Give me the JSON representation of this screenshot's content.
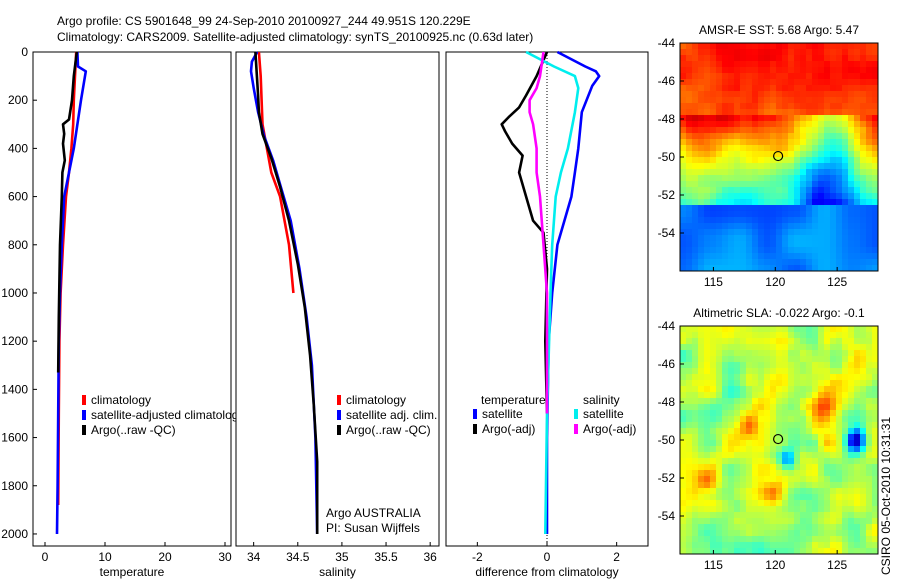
{
  "header": {
    "line1": "Argo profile: CS 5901648_99 24-Sep-2010 20100927_244 49.951S 120.229E",
    "line2": "Climatology: CARS2009. Satellite-adjusted climatology: synTS_20100925.nc (0.63d later)"
  },
  "credit": "CSIRO 05-Oct-2010 10:31:31",
  "colors": {
    "climatology": "#ff0000",
    "satellite": "#0000ff",
    "argo": "#000000",
    "sal_satellite": "#00eeee",
    "sal_argo": "#ff00ff"
  },
  "depth_ticks": [
    "0",
    "200",
    "400",
    "600",
    "800",
    "1000",
    "1200",
    "1400",
    "1600",
    "1800",
    "2000"
  ],
  "chart_data": [
    {
      "type": "line",
      "panel": "temperature",
      "xlabel": "temperature",
      "xlim": [
        -2,
        31
      ],
      "ylim": [
        0,
        2050
      ],
      "y_reversed": true,
      "xticks": [
        "0",
        "10",
        "20",
        "30"
      ],
      "legend": [
        "climatology",
        "satellite-adjusted climatolog",
        "Argo(..raw -QC)"
      ],
      "series": [
        {
          "name": "climatology",
          "color": "#ff0000",
          "x": [
            5.2,
            5.0,
            4.8,
            4.7,
            4.4,
            4.0,
            3.5,
            3.0,
            2.6,
            2.4,
            2.3,
            2.2
          ],
          "y": [
            0,
            100,
            200,
            300,
            400,
            500,
            600,
            800,
            1000,
            1200,
            1500,
            1880
          ]
        },
        {
          "name": "satellite-adjusted climatolog",
          "color": "#0000ff",
          "x": [
            5.4,
            5.5,
            6.8,
            6.0,
            4.8,
            4.0,
            3.2,
            2.8,
            2.5,
            2.3,
            2.2,
            2.1,
            2.0
          ],
          "y": [
            0,
            60,
            80,
            200,
            400,
            500,
            600,
            800,
            1000,
            1200,
            1500,
            1800,
            2000
          ]
        },
        {
          "name": "Argo(..raw -QC)",
          "color": "#000000",
          "x": [
            5.3,
            4.8,
            4.5,
            4.0,
            3.0,
            3.2,
            3.0,
            3.3,
            2.9,
            2.8,
            2.5,
            2.3,
            2.2
          ],
          "y": [
            0,
            100,
            200,
            280,
            300,
            340,
            380,
            450,
            500,
            600,
            800,
            1100,
            1330
          ]
        }
      ]
    },
    {
      "type": "line",
      "panel": "salinity",
      "xlabel": "salinity",
      "xlim": [
        33.8,
        36.1
      ],
      "ylim": [
        0,
        2050
      ],
      "y_reversed": true,
      "xticks": [
        "34",
        "34.5",
        "35",
        "35.5",
        "36"
      ],
      "legend": [
        "climatology",
        "satellite adj. clim.",
        "Argo(..raw -QC)"
      ],
      "annotations": [
        "Argo AUSTRALIA",
        "PI: Susan Wijffels"
      ],
      "series": [
        {
          "name": "climatology",
          "color": "#ff0000",
          "x": [
            34.06,
            34.08,
            34.09,
            34.1,
            34.15,
            34.2,
            34.3,
            34.4,
            34.45
          ],
          "y": [
            0,
            100,
            200,
            300,
            400,
            500,
            600,
            800,
            1000
          ]
        },
        {
          "name": "satellite adj. clim.",
          "color": "#0000ff",
          "x": [
            34.04,
            33.98,
            33.97,
            34.0,
            34.05,
            34.12,
            34.22,
            34.3,
            34.42,
            34.52,
            34.6,
            34.66,
            34.7,
            34.72
          ],
          "y": [
            0,
            40,
            80,
            150,
            250,
            350,
            450,
            550,
            700,
            900,
            1100,
            1300,
            1600,
            2000
          ]
        },
        {
          "name": "Argo(..raw -QC)",
          "color": "#000000",
          "x": [
            34.02,
            34.03,
            34.04,
            34.05,
            34.06,
            34.1,
            34.2,
            34.3,
            34.4,
            34.5,
            34.58,
            34.64,
            34.68,
            34.72,
            34.72
          ],
          "y": [
            0,
            60,
            120,
            180,
            250,
            340,
            440,
            560,
            700,
            880,
            1060,
            1260,
            1460,
            1700,
            2000
          ]
        }
      ]
    },
    {
      "type": "line",
      "panel": "difference",
      "xlabel": "difference from climatology",
      "xlim": [
        -2.9,
        2.9
      ],
      "ylim": [
        0,
        2050
      ],
      "y_reversed": true,
      "xticks": [
        "-2",
        "0",
        "2"
      ],
      "legend_titles": [
        "temperature",
        "salinity"
      ],
      "legend": [
        "satellite",
        "Argo(-adj)",
        "satellite",
        "Argo(-adj)"
      ],
      "series": [
        {
          "name": "satellite",
          "group": "temperature",
          "color": "#0000ff",
          "x": [
            0.3,
            1.1,
            1.4,
            1.5,
            1.3,
            1.0,
            0.9,
            0.8,
            0.7,
            0.5,
            0.3,
            0.15,
            0.05,
            0.0,
            0.0
          ],
          "y": [
            0,
            60,
            80,
            100,
            140,
            250,
            400,
            500,
            600,
            700,
            800,
            1000,
            1200,
            1600,
            2000
          ]
        },
        {
          "name": "Argo(-adj)",
          "group": "temperature",
          "color": "#000000",
          "x": [
            0.0,
            -0.3,
            -0.6,
            -0.8,
            -1.1,
            -1.3,
            -1.2,
            -1.0,
            -0.7,
            -0.8,
            -0.6,
            -0.4,
            -0.1,
            0.0,
            -0.05,
            0.0
          ],
          "y": [
            0,
            100,
            180,
            230,
            270,
            300,
            330,
            380,
            430,
            500,
            600,
            700,
            750,
            900,
            1200,
            1500
          ]
        },
        {
          "name": "satellite",
          "group": "salinity",
          "color": "#00eeee",
          "x": [
            -0.6,
            0.2,
            0.8,
            0.9,
            0.8,
            0.6,
            0.4,
            0.25,
            0.15,
            0.1,
            0.0,
            -0.05
          ],
          "y": [
            0,
            60,
            100,
            150,
            250,
            400,
            500,
            600,
            800,
            1000,
            1500,
            2000
          ]
        },
        {
          "name": "Argo(-adj)",
          "group": "salinity",
          "color": "#ff00ff",
          "x": [
            -0.1,
            -0.2,
            -0.3,
            -0.5,
            -0.5,
            -0.4,
            -0.3,
            -0.3,
            -0.2,
            -0.1,
            0.0,
            0.0
          ],
          "y": [
            0,
            100,
            150,
            200,
            250,
            300,
            400,
            500,
            600,
            800,
            1000,
            1500
          ]
        }
      ]
    },
    {
      "type": "heatmap",
      "panel": "sst_map",
      "title": "AMSR-E SST: 5.68 Argo: 5.47",
      "xlim": [
        112.3,
        128.3
      ],
      "ylim": [
        -56,
        -44
      ],
      "xticks": [
        "115",
        "120",
        "125"
      ],
      "yticks": [
        "-44",
        "-46",
        "-48",
        "-50",
        "-52",
        "-54"
      ],
      "marker": {
        "lon": 120.229,
        "lat": -49.951
      }
    },
    {
      "type": "heatmap",
      "panel": "sla_map",
      "title": "Altimetric SLA: -0.022 Argo: -0.1",
      "xlim": [
        112.3,
        128.3
      ],
      "ylim": [
        -56,
        -44
      ],
      "xticks": [
        "115",
        "120",
        "125"
      ],
      "yticks": [
        "-44",
        "-46",
        "-48",
        "-50",
        "-52",
        "-54"
      ],
      "marker": {
        "lon": 120.229,
        "lat": -49.951
      }
    }
  ]
}
